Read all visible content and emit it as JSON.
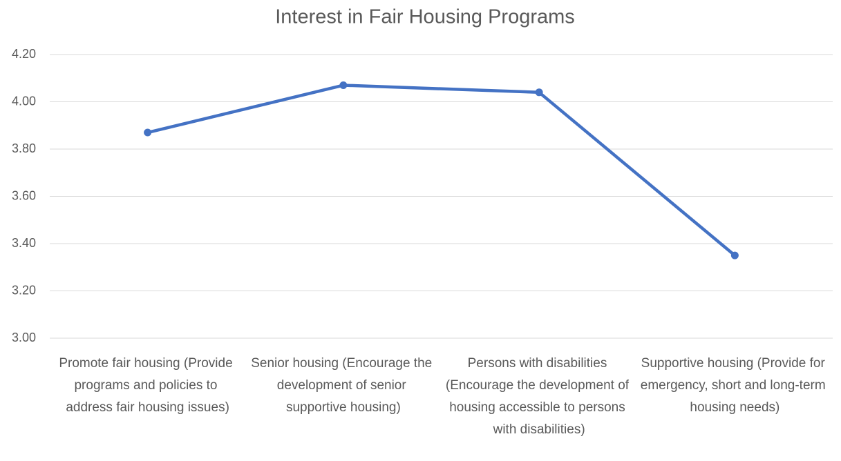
{
  "chart_data": {
    "type": "line",
    "title": "Interest in Fair Housing Programs",
    "categories": [
      "Promote fair housing (Provide programs and policies to address fair housing issues)",
      "Senior housing (Encourage the development of senior supportive housing)",
      "Persons with disabilities (Encourage the development of housing accessible to persons with disabilities)",
      "Supportive housing (Provide for emergency, short and long-term housing needs)"
    ],
    "series": [
      {
        "name": "Interest",
        "color": "#4472c4",
        "values": [
          3.87,
          4.07,
          4.04,
          3.35
        ]
      }
    ],
    "ylim": [
      3.0,
      4.2
    ],
    "yticks": [
      {
        "value": 3.0,
        "label": "3.00"
      },
      {
        "value": 3.2,
        "label": "3.20"
      },
      {
        "value": 3.4,
        "label": "3.40"
      },
      {
        "value": 3.6,
        "label": "3.60"
      },
      {
        "value": 3.8,
        "label": "3.80"
      },
      {
        "value": 4.0,
        "label": "4.00"
      },
      {
        "value": 4.2,
        "label": "4.20"
      }
    ],
    "grid": true
  }
}
